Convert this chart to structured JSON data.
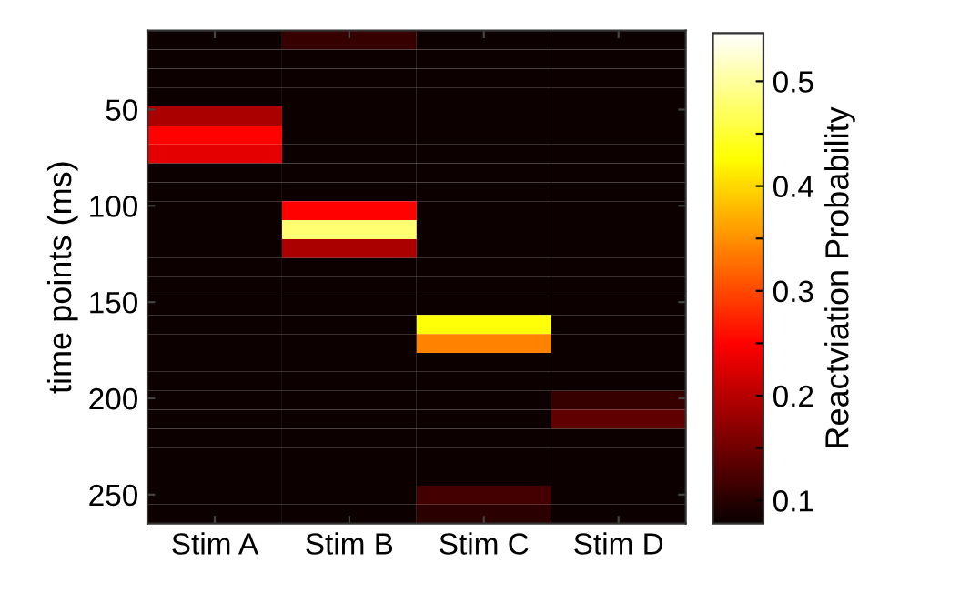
{
  "chart_data": {
    "type": "heatmap",
    "ylabel": "time points (ms)",
    "clabel": "Reactviation Probability",
    "categories": [
      "Stim A",
      "Stim B",
      "Stim C",
      "Stim D"
    ],
    "ylim": [
      265,
      9
    ],
    "yticks": [
      50,
      100,
      150,
      200,
      250
    ],
    "cells": [
      [
        0.08,
        0.11,
        0.08,
        0.08
      ],
      [
        0.08,
        0.08,
        0.08,
        0.08
      ],
      [
        0.08,
        0.08,
        0.08,
        0.08
      ],
      [
        0.08,
        0.08,
        0.08,
        0.08
      ],
      [
        0.19,
        0.08,
        0.08,
        0.08
      ],
      [
        0.25,
        0.08,
        0.08,
        0.08
      ],
      [
        0.23,
        0.08,
        0.08,
        0.08
      ],
      [
        0.08,
        0.08,
        0.08,
        0.08
      ],
      [
        0.08,
        0.08,
        0.08,
        0.08
      ],
      [
        0.08,
        0.25,
        0.08,
        0.08
      ],
      [
        0.08,
        0.48,
        0.08,
        0.08
      ],
      [
        0.08,
        0.19,
        0.08,
        0.08
      ],
      [
        0.08,
        0.08,
        0.08,
        0.08
      ],
      [
        0.08,
        0.08,
        0.08,
        0.08
      ],
      [
        0.08,
        0.08,
        0.08,
        0.08
      ],
      [
        0.08,
        0.08,
        0.43,
        0.08
      ],
      [
        0.08,
        0.08,
        0.34,
        0.08
      ],
      [
        0.08,
        0.08,
        0.08,
        0.08
      ],
      [
        0.08,
        0.08,
        0.08,
        0.08
      ],
      [
        0.08,
        0.08,
        0.08,
        0.11
      ],
      [
        0.08,
        0.08,
        0.08,
        0.14
      ],
      [
        0.08,
        0.08,
        0.08,
        0.08
      ],
      [
        0.08,
        0.08,
        0.08,
        0.08
      ],
      [
        0.08,
        0.08,
        0.08,
        0.08
      ],
      [
        0.08,
        0.08,
        0.12,
        0.08
      ],
      [
        0.08,
        0.08,
        0.1,
        0.08
      ]
    ],
    "clim": [
      0.078,
      0.546
    ],
    "cticks": [
      0.1,
      {
        "value": 0.15,
        "label": null
      },
      0.2,
      {
        "value": 0.25,
        "label": null
      },
      0.3,
      {
        "value": 0.35,
        "label": null
      },
      0.4,
      {
        "value": 0.45,
        "label": null
      },
      0.5
    ]
  }
}
